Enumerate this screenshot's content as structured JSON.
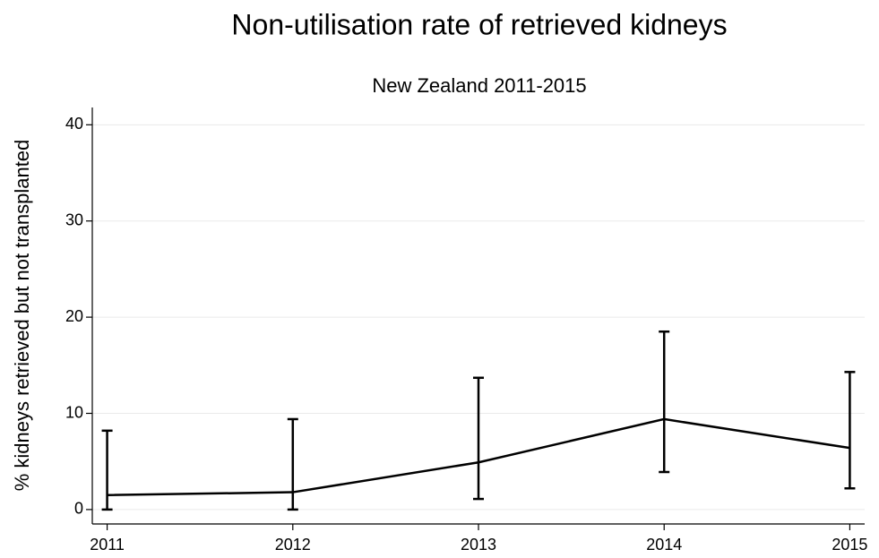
{
  "chart_data": {
    "type": "line",
    "title": "Non-utilisation rate of retrieved kidneys",
    "subtitle": "New Zealand 2011-2015",
    "y_label": "% kidneys retrieved but not transplanted",
    "x": [
      2011,
      2012,
      2013,
      2014,
      2015
    ],
    "series": [
      {
        "color": "#000000",
        "values": [
          1.5,
          1.8,
          4.9,
          9.4,
          6.4
        ],
        "lower": [
          0,
          0,
          1.1,
          3.9,
          2.2
        ],
        "upper": [
          8.2,
          9.4,
          13.7,
          18.5,
          14.3
        ]
      }
    ],
    "xlim": [
      2010.92,
      2015.08
    ],
    "xticks": [
      2011,
      2012,
      2013,
      2014,
      2015
    ],
    "ylim": [
      -1.5,
      41.8
    ],
    "yticks": [
      0,
      10,
      20,
      30,
      40
    ],
    "grid": true
  }
}
